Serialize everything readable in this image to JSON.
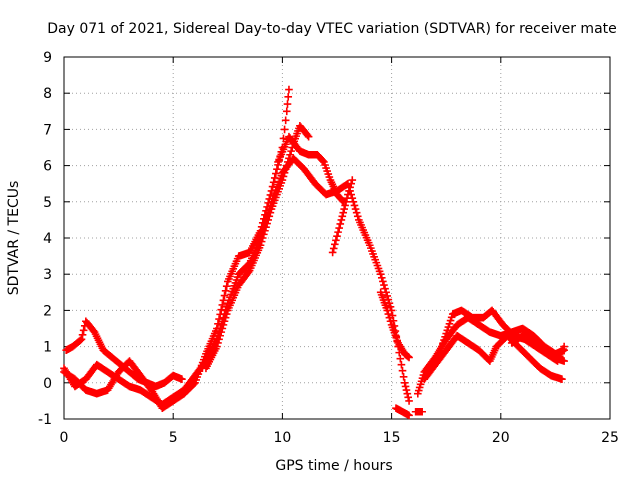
{
  "chart_data": {
    "type": "scatter",
    "title": "Day 071 of 2021, Sidereal Day-to-day VTEC variation (SDTVAR) for receiver mate",
    "xlabel": "GPS time / hours",
    "ylabel": "SDTVAR / TECUs",
    "xlim": [
      0,
      25
    ],
    "ylim": [
      -1,
      9
    ],
    "xticks": [
      0,
      5,
      10,
      15,
      20,
      25
    ],
    "yticks": [
      -1,
      0,
      1,
      2,
      3,
      4,
      5,
      6,
      7,
      8,
      9
    ],
    "grid": true,
    "marker": "plus",
    "series": [
      {
        "name": "SDTVAR",
        "color": "#ff0000",
        "curves": [
          [
            [
              0.0,
              0.3
            ],
            [
              0.5,
              0.1
            ],
            [
              1.0,
              -0.2
            ],
            [
              1.5,
              -0.3
            ],
            [
              2.0,
              -0.2
            ],
            [
              2.5,
              0.3
            ],
            [
              3.0,
              0.6
            ],
            [
              3.5,
              0.2
            ],
            [
              4.0,
              -0.2
            ],
            [
              4.5,
              -0.7
            ],
            [
              5.0,
              -0.5
            ],
            [
              5.5,
              -0.3
            ],
            [
              6.0,
              0.0
            ],
            [
              6.5,
              0.8
            ],
            [
              7.0,
              1.5
            ],
            [
              7.5,
              2.8
            ],
            [
              8.0,
              3.5
            ],
            [
              8.5,
              3.6
            ],
            [
              9.0,
              4.2
            ],
            [
              9.5,
              5.3
            ],
            [
              10.0,
              6.5
            ],
            [
              10.2,
              7.5
            ],
            [
              10.3,
              8.1
            ]
          ],
          [
            [
              0.0,
              0.4
            ],
            [
              0.5,
              -0.1
            ],
            [
              1.0,
              0.1
            ],
            [
              1.5,
              0.5
            ],
            [
              2.0,
              0.3
            ],
            [
              2.5,
              0.1
            ],
            [
              3.0,
              -0.1
            ],
            [
              3.5,
              -0.2
            ],
            [
              4.0,
              -0.4
            ],
            [
              4.5,
              -0.6
            ],
            [
              5.0,
              -0.4
            ],
            [
              5.5,
              -0.2
            ],
            [
              6.0,
              0.2
            ],
            [
              6.5,
              0.6
            ],
            [
              7.0,
              1.2
            ],
            [
              7.5,
              2.2
            ],
            [
              8.0,
              3.0
            ],
            [
              8.5,
              3.3
            ],
            [
              9.0,
              4.0
            ],
            [
              9.5,
              5.0
            ],
            [
              10.0,
              5.8
            ],
            [
              10.5,
              6.2
            ],
            [
              11.0,
              5.9
            ],
            [
              11.5,
              5.5
            ],
            [
              12.0,
              5.2
            ],
            [
              12.5,
              5.3
            ],
            [
              13.0,
              5.5
            ],
            [
              13.5,
              4.5
            ],
            [
              14.0,
              3.8
            ],
            [
              14.5,
              3.0
            ],
            [
              15.0,
              2.0
            ],
            [
              15.3,
              1.0
            ],
            [
              15.6,
              0.0
            ],
            [
              15.8,
              -0.5
            ]
          ],
          [
            [
              0.1,
              0.9
            ],
            [
              0.4,
              1.0
            ],
            [
              0.8,
              1.2
            ],
            [
              1.0,
              1.7
            ],
            [
              1.4,
              1.4
            ],
            [
              1.8,
              0.9
            ],
            [
              2.2,
              0.7
            ],
            [
              2.6,
              0.5
            ],
            [
              3.0,
              0.3
            ],
            [
              3.4,
              0.1
            ],
            [
              3.8,
              0.0
            ],
            [
              4.2,
              -0.1
            ],
            [
              4.6,
              0.0
            ],
            [
              5.0,
              0.2
            ],
            [
              5.4,
              0.1
            ]
          ],
          [
            [
              6.5,
              0.4
            ],
            [
              7.0,
              1.0
            ],
            [
              7.5,
              2.0
            ],
            [
              8.0,
              2.7
            ],
            [
              8.5,
              3.1
            ],
            [
              9.0,
              3.8
            ],
            [
              9.5,
              4.8
            ],
            [
              10.0,
              5.6
            ],
            [
              10.5,
              6.6
            ],
            [
              10.8,
              7.1
            ],
            [
              11.2,
              6.8
            ]
          ],
          [
            [
              9.8,
              6.1
            ],
            [
              10.3,
              6.8
            ],
            [
              10.8,
              6.4
            ],
            [
              11.2,
              6.3
            ],
            [
              11.6,
              6.3
            ],
            [
              11.9,
              6.1
            ],
            [
              12.2,
              5.6
            ],
            [
              12.5,
              5.2
            ],
            [
              12.8,
              5.0
            ]
          ],
          [
            [
              12.3,
              3.6
            ],
            [
              12.7,
              4.5
            ],
            [
              13.0,
              5.2
            ],
            [
              13.2,
              5.6
            ]
          ],
          [
            [
              14.5,
              2.5
            ],
            [
              14.8,
              2.0
            ],
            [
              15.0,
              1.6
            ],
            [
              15.3,
              1.1
            ],
            [
              15.6,
              0.8
            ],
            [
              15.8,
              0.7
            ]
          ],
          [
            [
              15.2,
              -0.7
            ],
            [
              15.5,
              -0.8
            ],
            [
              15.8,
              -0.9
            ]
          ],
          [
            [
              16.1,
              -0.8
            ],
            [
              16.4,
              -0.8
            ]
          ],
          [
            [
              16.2,
              -0.3
            ],
            [
              16.5,
              0.3
            ],
            [
              17.0,
              0.7
            ],
            [
              17.5,
              1.2
            ],
            [
              18.0,
              1.6
            ],
            [
              18.5,
              1.8
            ],
            [
              19.0,
              1.6
            ],
            [
              19.5,
              1.4
            ],
            [
              20.0,
              1.3
            ],
            [
              20.5,
              1.4
            ],
            [
              21.0,
              1.5
            ],
            [
              21.5,
              1.3
            ],
            [
              22.0,
              1.0
            ],
            [
              22.5,
              0.8
            ],
            [
              22.9,
              0.9
            ]
          ],
          [
            [
              16.5,
              0.1
            ],
            [
              17.0,
              0.5
            ],
            [
              17.5,
              0.9
            ],
            [
              18.0,
              1.3
            ],
            [
              18.5,
              1.1
            ],
            [
              19.0,
              0.9
            ],
            [
              19.5,
              0.6
            ],
            [
              19.8,
              1.0
            ],
            [
              20.3,
              1.3
            ],
            [
              20.8,
              1.0
            ],
            [
              21.3,
              0.7
            ],
            [
              21.8,
              0.4
            ],
            [
              22.3,
              0.2
            ],
            [
              22.8,
              0.1
            ]
          ],
          [
            [
              17.3,
              1.0
            ],
            [
              17.8,
              1.9
            ],
            [
              18.2,
              2.0
            ],
            [
              18.7,
              1.8
            ],
            [
              19.2,
              1.8
            ],
            [
              19.6,
              2.0
            ],
            [
              20.1,
              1.6
            ],
            [
              20.6,
              1.3
            ],
            [
              21.1,
              1.2
            ],
            [
              21.6,
              1.0
            ],
            [
              22.1,
              0.8
            ],
            [
              22.6,
              0.6
            ],
            [
              22.9,
              1.0
            ]
          ],
          [
            [
              20.5,
              1.1
            ],
            [
              21.0,
              1.3
            ],
            [
              21.5,
              1.2
            ],
            [
              22.0,
              0.9
            ],
            [
              22.4,
              0.7
            ],
            [
              22.9,
              0.6
            ]
          ]
        ]
      }
    ]
  }
}
